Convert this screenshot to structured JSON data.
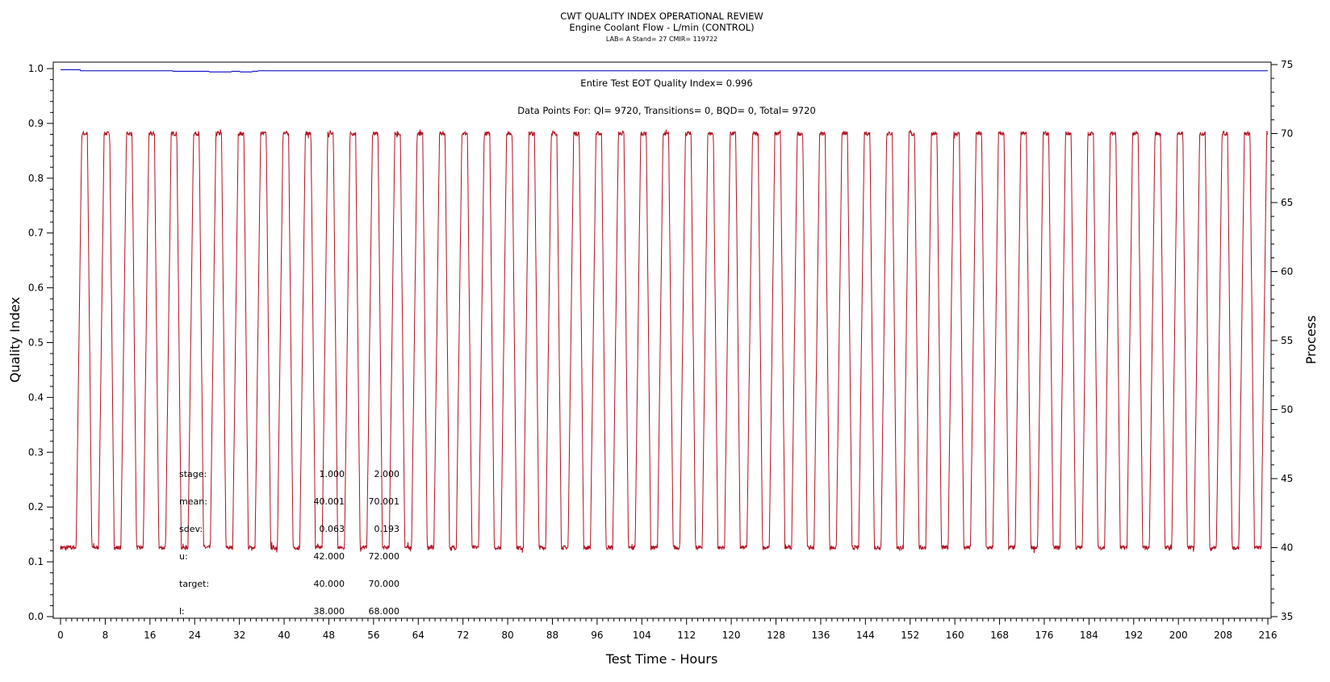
{
  "chart_data": {
    "type": "line",
    "title": "CWT QUALITY INDEX OPERATIONAL REVIEW",
    "subtitle": "Engine Coolant Flow - L/min (CONTROL)",
    "subtitle2": "LAB= A Stand= 27 CMIR= 119722",
    "xlabel": "Test Time - Hours",
    "ylabel": "Quality Index",
    "y2label": "Process",
    "xlim": [
      0,
      216
    ],
    "ylim": [
      0.0,
      1.0
    ],
    "y2lim": [
      35,
      75
    ],
    "x_ticks": [
      "0",
      "8",
      "16",
      "24",
      "32",
      "40",
      "48",
      "56",
      "64",
      "72",
      "80",
      "88",
      "96",
      "104",
      "112",
      "120",
      "128",
      "136",
      "144",
      "152",
      "160",
      "168",
      "176",
      "184",
      "192",
      "200",
      "208",
      "216"
    ],
    "y_ticks": [
      "0.0",
      "0.1",
      "0.2",
      "0.3",
      "0.4",
      "0.5",
      "0.6",
      "0.7",
      "0.8",
      "0.9",
      "1.0"
    ],
    "y2_ticks": [
      "35",
      "40",
      "45",
      "50",
      "55",
      "60",
      "65",
      "70",
      "75"
    ],
    "annotations": {
      "eot": "Entire Test EOT Quality Index=   0.996",
      "points": "Data Points For: QI=  9720, Transitions=     0, BQD=     0, Total=  9720"
    },
    "stats": {
      "rows": [
        {
          "label": "stage:",
          "c1": "1.000",
          "c2": "2.000"
        },
        {
          "label": "mean:",
          "c1": "40.001",
          "c2": "70.001"
        },
        {
          "label": "sdev:",
          "c1": "0.063",
          "c2": "0.193"
        },
        {
          "label": "u:",
          "c1": "42.000",
          "c2": "72.000"
        },
        {
          "label": "target:",
          "c1": "40.000",
          "c2": "70.000"
        },
        {
          "label": "l:",
          "c1": "38.000",
          "c2": "68.000"
        }
      ]
    },
    "series": [
      {
        "name": "Quality Index",
        "axis": "left",
        "color": "#1a1acc",
        "x": [
          0,
          3.5,
          3.6,
          20,
          20.2,
          26.5,
          26.7,
          30.5,
          30.7,
          32,
          32.2,
          34.2,
          34.4,
          35.2,
          35.4,
          216
        ],
        "values": [
          0.998,
          0.998,
          0.996,
          0.996,
          0.995,
          0.995,
          0.994,
          0.994,
          0.995,
          0.995,
          0.994,
          0.994,
          0.995,
          0.995,
          0.996,
          0.996
        ]
      },
      {
        "name": "Process",
        "axis": "right",
        "color": "#b01020",
        "pattern": "square wave",
        "low_level": 40,
        "high_level": 70,
        "period_hours": 4,
        "first_rise_hours": 2.8,
        "rise_duration_hours": 1.0,
        "high_duration_hours": 1.0,
        "fall_duration_hours": 0.8,
        "noise": 0.15,
        "end_hours": 216
      }
    ]
  },
  "colors": {
    "quality_index_line": "#1a1acc",
    "process_line": "#b01020",
    "axes": "#000000"
  }
}
